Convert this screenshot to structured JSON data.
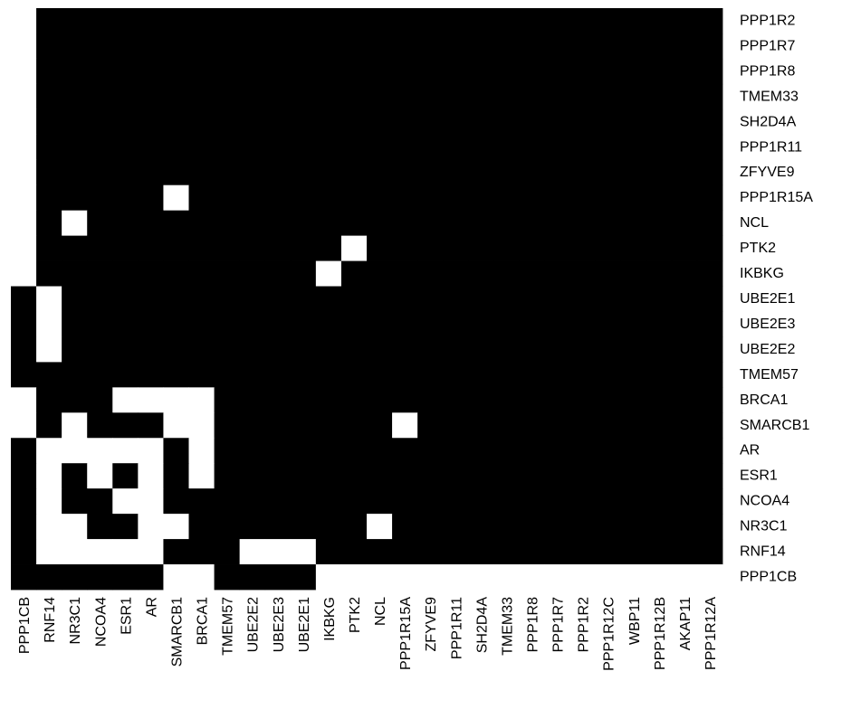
{
  "chart_data": {
    "type": "heatmap",
    "title": "",
    "xlabel": "",
    "ylabel": "",
    "colors": {
      "1": "#000000",
      "0": "#ffffff"
    },
    "x_labels": [
      "PPP1CB",
      "RNF14",
      "NR3C1",
      "NCOA4",
      "ESR1",
      "AR",
      "SMARCB1",
      "BRCA1",
      "TMEM57",
      "UBE2E2",
      "UBE2E3",
      "UBE2E1",
      "IKBKG",
      "PTK2",
      "NCL",
      "PPP1R15A",
      "ZFYVE9",
      "PPP1R11",
      "SH2D4A",
      "TMEM33",
      "PPP1R8",
      "PPP1R7",
      "PPP1R2",
      "PPP1R12C",
      "WBP11",
      "PPP1R12B",
      "AKAP11",
      "PPP1R12A"
    ],
    "y_labels": [
      "PPP1R2",
      "PPP1R7",
      "PPP1R8",
      "TMEM33",
      "SH2D4A",
      "PPP1R11",
      "ZFYVE9",
      "PPP1R15A",
      "NCL",
      "PTK2",
      "IKBKG",
      "UBE2E1",
      "UBE2E3",
      "UBE2E2",
      "TMEM57",
      "BRCA1",
      "SMARCB1",
      "AR",
      "ESR1",
      "NCOA4",
      "NR3C1",
      "RNF14",
      "PPP1CB"
    ],
    "matrix": [
      [
        0,
        1,
        1,
        1,
        1,
        1,
        1,
        1,
        1,
        1,
        1,
        1,
        1,
        1,
        1,
        1,
        1,
        1,
        1,
        1,
        1,
        1,
        1,
        1,
        1,
        1,
        1,
        1
      ],
      [
        0,
        1,
        1,
        1,
        1,
        1,
        1,
        1,
        1,
        1,
        1,
        1,
        1,
        1,
        1,
        1,
        1,
        1,
        1,
        1,
        1,
        1,
        1,
        1,
        1,
        1,
        1,
        1
      ],
      [
        0,
        1,
        1,
        1,
        1,
        1,
        1,
        1,
        1,
        1,
        1,
        1,
        1,
        1,
        1,
        1,
        1,
        1,
        1,
        1,
        1,
        1,
        1,
        1,
        1,
        1,
        1,
        1
      ],
      [
        0,
        1,
        1,
        1,
        1,
        1,
        1,
        1,
        1,
        1,
        1,
        1,
        1,
        1,
        1,
        1,
        1,
        1,
        1,
        1,
        1,
        1,
        1,
        1,
        1,
        1,
        1,
        1
      ],
      [
        0,
        1,
        1,
        1,
        1,
        1,
        1,
        1,
        1,
        1,
        1,
        1,
        1,
        1,
        1,
        1,
        1,
        1,
        1,
        1,
        1,
        1,
        1,
        1,
        1,
        1,
        1,
        1
      ],
      [
        0,
        1,
        1,
        1,
        1,
        1,
        1,
        1,
        1,
        1,
        1,
        1,
        1,
        1,
        1,
        1,
        1,
        1,
        1,
        1,
        1,
        1,
        1,
        1,
        1,
        1,
        1,
        1
      ],
      [
        0,
        1,
        1,
        1,
        1,
        1,
        1,
        1,
        1,
        1,
        1,
        1,
        1,
        1,
        1,
        1,
        1,
        1,
        1,
        1,
        1,
        1,
        1,
        1,
        1,
        1,
        1,
        1
      ],
      [
        0,
        1,
        1,
        1,
        1,
        1,
        0,
        1,
        1,
        1,
        1,
        1,
        1,
        1,
        1,
        1,
        1,
        1,
        1,
        1,
        1,
        1,
        1,
        1,
        1,
        1,
        1,
        1
      ],
      [
        0,
        1,
        0,
        1,
        1,
        1,
        1,
        1,
        1,
        1,
        1,
        1,
        1,
        1,
        1,
        1,
        1,
        1,
        1,
        1,
        1,
        1,
        1,
        1,
        1,
        1,
        1,
        1
      ],
      [
        0,
        1,
        1,
        1,
        1,
        1,
        1,
        1,
        1,
        1,
        1,
        1,
        1,
        0,
        1,
        1,
        1,
        1,
        1,
        1,
        1,
        1,
        1,
        1,
        1,
        1,
        1,
        1
      ],
      [
        0,
        1,
        1,
        1,
        1,
        1,
        1,
        1,
        1,
        1,
        1,
        1,
        0,
        1,
        1,
        1,
        1,
        1,
        1,
        1,
        1,
        1,
        1,
        1,
        1,
        1,
        1,
        1
      ],
      [
        1,
        0,
        1,
        1,
        1,
        1,
        1,
        1,
        1,
        1,
        1,
        1,
        1,
        1,
        1,
        1,
        1,
        1,
        1,
        1,
        1,
        1,
        1,
        1,
        1,
        1,
        1,
        1
      ],
      [
        1,
        0,
        1,
        1,
        1,
        1,
        1,
        1,
        1,
        1,
        1,
        1,
        1,
        1,
        1,
        1,
        1,
        1,
        1,
        1,
        1,
        1,
        1,
        1,
        1,
        1,
        1,
        1
      ],
      [
        1,
        0,
        1,
        1,
        1,
        1,
        1,
        1,
        1,
        1,
        1,
        1,
        1,
        1,
        1,
        1,
        1,
        1,
        1,
        1,
        1,
        1,
        1,
        1,
        1,
        1,
        1,
        1
      ],
      [
        1,
        1,
        1,
        1,
        1,
        1,
        1,
        1,
        1,
        1,
        1,
        1,
        1,
        1,
        1,
        1,
        1,
        1,
        1,
        1,
        1,
        1,
        1,
        1,
        1,
        1,
        1,
        1
      ],
      [
        0,
        1,
        1,
        1,
        0,
        0,
        0,
        0,
        1,
        1,
        1,
        1,
        1,
        1,
        1,
        1,
        1,
        1,
        1,
        1,
        1,
        1,
        1,
        1,
        1,
        1,
        1,
        1
      ],
      [
        0,
        1,
        0,
        1,
        1,
        1,
        0,
        0,
        1,
        1,
        1,
        1,
        1,
        1,
        1,
        0,
        1,
        1,
        1,
        1,
        1,
        1,
        1,
        1,
        1,
        1,
        1,
        1
      ],
      [
        1,
        0,
        0,
        0,
        0,
        0,
        1,
        0,
        1,
        1,
        1,
        1,
        1,
        1,
        1,
        1,
        1,
        1,
        1,
        1,
        1,
        1,
        1,
        1,
        1,
        1,
        1,
        1
      ],
      [
        1,
        0,
        1,
        0,
        1,
        0,
        1,
        0,
        1,
        1,
        1,
        1,
        1,
        1,
        1,
        1,
        1,
        1,
        1,
        1,
        1,
        1,
        1,
        1,
        1,
        1,
        1,
        1
      ],
      [
        1,
        0,
        1,
        1,
        0,
        0,
        1,
        1,
        1,
        1,
        1,
        1,
        1,
        1,
        1,
        1,
        1,
        1,
        1,
        1,
        1,
        1,
        1,
        1,
        1,
        1,
        1,
        1
      ],
      [
        1,
        0,
        0,
        1,
        1,
        0,
        0,
        1,
        1,
        1,
        1,
        1,
        1,
        1,
        0,
        1,
        1,
        1,
        1,
        1,
        1,
        1,
        1,
        1,
        1,
        1,
        1,
        1
      ],
      [
        1,
        0,
        0,
        0,
        0,
        0,
        1,
        1,
        1,
        0,
        0,
        0,
        1,
        1,
        1,
        1,
        1,
        1,
        1,
        1,
        1,
        1,
        1,
        1,
        1,
        1,
        1,
        1
      ],
      [
        1,
        1,
        1,
        1,
        1,
        1,
        0,
        0,
        1,
        1,
        1,
        1,
        0,
        0,
        0,
        0,
        0,
        0,
        0,
        0,
        0,
        0,
        0,
        0,
        0,
        0,
        0,
        0
      ]
    ]
  }
}
